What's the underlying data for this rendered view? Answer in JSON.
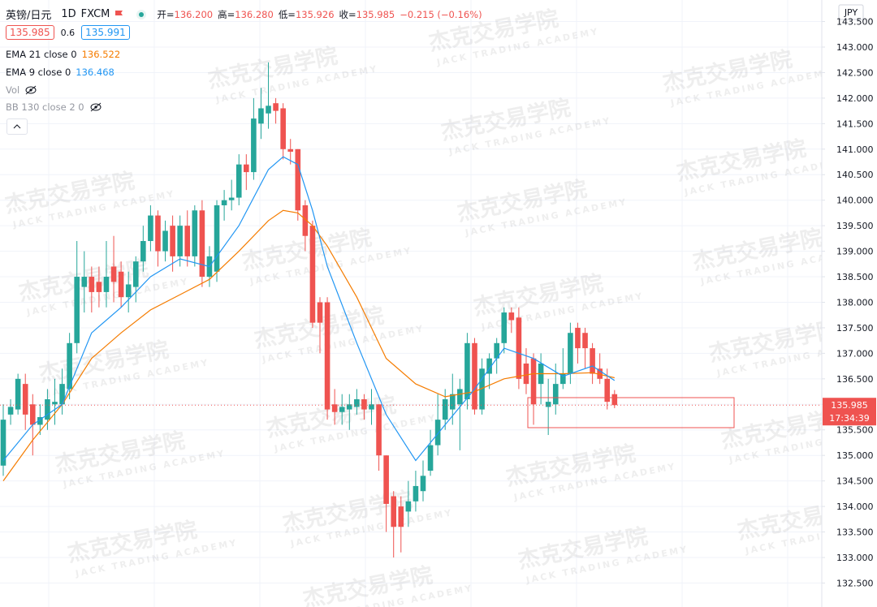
{
  "chart_data": {
    "type": "candlestick",
    "symbol": "英镑/日元",
    "interval": "1D",
    "source": "FXCM",
    "ohlc_legend": [
      {
        "label": "开=",
        "value": "136.200"
      },
      {
        "label": "高=",
        "value": "136.280"
      },
      {
        "label": "低=",
        "value": "135.926"
      },
      {
        "label": "收=",
        "value": "135.985"
      }
    ],
    "change": "−0.215 (−0.16%)",
    "sell": 135.985,
    "spread": 0.6,
    "buy": 135.991,
    "hidden_indicators": [
      "Vol",
      "BB 130 close 2 0"
    ],
    "currency": "JPY",
    "countdown": "17:34:39",
    "watermark": {
      "cn": "杰克交易学院",
      "en": "JACK TRADING ACADEMY"
    },
    "up_color": "#26a69a",
    "down_color": "#ef5350",
    "open": [
      134.8,
      135.8,
      135.9,
      136.4,
      136.0,
      135.6,
      135.7,
      136.0,
      136.0,
      136.3,
      137.2,
      138.3,
      138.5,
      138.4,
      138.2,
      138.7,
      138.6,
      138.1,
      138.3,
      138.8,
      139.2,
      139.7,
      139.0,
      139.5,
      138.9,
      139.5,
      138.9,
      139.8,
      138.5,
      138.6,
      139.9,
      140.0,
      140.05,
      140.7,
      140.55,
      141.5,
      141.7,
      141.9,
      141.8,
      141.0,
      141.0,
      139.9,
      139.5,
      138.0,
      138.0,
      136.0,
      135.85,
      135.9,
      135.95,
      136.1,
      135.9,
      136.0,
      135.0,
      134.2,
      134.0,
      133.9,
      134.1,
      134.3,
      134.7,
      135.2,
      135.7,
      135.9,
      136.0,
      136.1,
      137.2,
      135.9,
      136.6,
      136.9,
      137.2,
      137.8,
      137.7,
      136.8,
      136.9,
      136.4,
      135.95,
      136.0,
      136.4,
      136.6,
      137.5,
      137.4,
      137.1,
      136.7,
      136.5,
      136.2
    ],
    "high": [
      136.0,
      136.1,
      136.6,
      136.6,
      136.2,
      136.0,
      136.3,
      136.5,
      136.7,
      137.4,
      139.2,
      139.0,
      138.7,
      138.7,
      139.2,
      139.3,
      138.8,
      138.6,
      138.9,
      139.5,
      139.9,
      139.8,
      139.6,
      139.7,
      139.7,
      139.8,
      139.9,
      140.0,
      139.1,
      140.0,
      140.2,
      140.4,
      140.9,
      140.9,
      142.0,
      142.2,
      142.7,
      142.0,
      141.9,
      141.2,
      141.0,
      140.0,
      139.6,
      138.1,
      138.1,
      136.3,
      136.2,
      136.2,
      136.3,
      136.2,
      136.3,
      136.0,
      135.0,
      134.3,
      134.2,
      134.5,
      134.7,
      134.9,
      135.5,
      136.2,
      136.3,
      136.6,
      136.5,
      137.4,
      137.3,
      136.9,
      137.0,
      137.3,
      137.9,
      137.9,
      137.9,
      137.1,
      137.0,
      137.0,
      136.5,
      136.8,
      137.1,
      137.6,
      137.6,
      137.5,
      137.2,
      137.0,
      136.7,
      136.28
    ],
    "low": [
      134.6,
      135.6,
      135.8,
      135.5,
      135.0,
      135.4,
      135.5,
      135.6,
      135.8,
      136.1,
      137.0,
      137.8,
      137.8,
      137.9,
      137.9,
      138.0,
      137.9,
      137.8,
      138.0,
      138.6,
      139.0,
      138.7,
      138.8,
      138.6,
      138.7,
      138.7,
      138.7,
      138.3,
      138.3,
      138.4,
      139.6,
      139.8,
      139.9,
      140.2,
      140.4,
      141.2,
      141.4,
      141.5,
      140.8,
      140.7,
      139.6,
      139.0,
      137.5,
      137.0,
      135.7,
      135.6,
      135.6,
      135.5,
      135.8,
      135.7,
      135.6,
      134.7,
      133.5,
      133.0,
      133.1,
      133.6,
      133.9,
      134.1,
      134.6,
      135.0,
      135.5,
      135.6,
      135.1,
      135.9,
      135.8,
      135.8,
      136.3,
      136.6,
      137.0,
      137.4,
      136.3,
      136.2,
      135.6,
      136.0,
      135.4,
      135.8,
      136.3,
      136.4,
      136.8,
      136.7,
      136.4,
      136.4,
      135.9,
      135.926
    ],
    "close": [
      135.7,
      135.95,
      136.5,
      135.8,
      135.6,
      135.75,
      136.1,
      136.05,
      136.4,
      137.2,
      138.5,
      138.5,
      138.2,
      138.2,
      138.5,
      138.4,
      138.1,
      138.35,
      138.8,
      139.2,
      139.7,
      139.0,
      139.4,
      138.9,
      139.5,
      138.9,
      139.8,
      138.5,
      138.9,
      139.9,
      140.0,
      140.05,
      140.7,
      140.55,
      141.6,
      141.8,
      141.85,
      141.75,
      141.0,
      140.95,
      139.8,
      139.3,
      137.6,
      137.6,
      135.9,
      135.85,
      135.95,
      136.0,
      136.1,
      135.9,
      136.0,
      135.0,
      134.05,
      133.6,
      133.6,
      134.1,
      134.4,
      134.6,
      135.2,
      135.7,
      136.1,
      136.2,
      136.3,
      137.2,
      135.9,
      136.7,
      136.9,
      137.2,
      137.8,
      137.65,
      136.5,
      136.4,
      136.0,
      136.8,
      136.05,
      136.4,
      136.6,
      137.4,
      137.1,
      137.1,
      136.6,
      136.5,
      136.05,
      135.985
    ],
    "series": [
      {
        "name": "EMA 21 close 0",
        "color": "#f57c00",
        "last_value": 136.522,
        "x": [
          0,
          4,
          8,
          12,
          16,
          20,
          24,
          28,
          32,
          36,
          38,
          40,
          42,
          44,
          48,
          52,
          56,
          60,
          64,
          68,
          72,
          76,
          80,
          83
        ],
        "values": [
          134.5,
          135.3,
          136.0,
          136.9,
          137.4,
          137.85,
          138.15,
          138.45,
          139.0,
          139.6,
          139.8,
          139.75,
          139.5,
          139.1,
          138.1,
          136.9,
          136.4,
          136.15,
          136.25,
          136.5,
          136.6,
          136.6,
          136.62,
          136.522
        ]
      },
      {
        "name": "EMA 9 close 0",
        "color": "#2196f3",
        "last_value": 136.468,
        "x": [
          0,
          4,
          8,
          12,
          16,
          20,
          24,
          28,
          32,
          36,
          38,
          40,
          42,
          44,
          48,
          52,
          56,
          60,
          64,
          68,
          72,
          76,
          80,
          83
        ],
        "values": [
          134.9,
          135.6,
          136.0,
          137.4,
          137.9,
          138.5,
          138.85,
          138.7,
          139.5,
          140.6,
          140.85,
          140.7,
          139.8,
          138.7,
          137.2,
          135.8,
          134.9,
          135.6,
          136.3,
          137.1,
          136.9,
          136.55,
          136.75,
          136.468
        ]
      }
    ],
    "ylim": [
      132.03,
      143.922
    ],
    "yticks": [
      {
        "value": 132.5,
        "label": "132.500"
      },
      {
        "value": 133,
        "label": "133.000"
      },
      {
        "value": 133.5,
        "label": "133.500"
      },
      {
        "value": 134,
        "label": "134.000"
      },
      {
        "value": 134.5,
        "label": "134.500"
      },
      {
        "value": 135,
        "label": "135.000"
      },
      {
        "value": 135.5,
        "label": "135.500"
      },
      {
        "value": 136,
        "label": "136.000"
      },
      {
        "value": 136.5,
        "label": "136.500"
      },
      {
        "value": 137,
        "label": "137.000"
      },
      {
        "value": 137.5,
        "label": "137.500"
      },
      {
        "value": 138,
        "label": "138.000"
      },
      {
        "value": 138.5,
        "label": "138.500"
      },
      {
        "value": 139,
        "label": "139.000"
      },
      {
        "value": 139.5,
        "label": "139.500"
      },
      {
        "value": 140,
        "label": "140.000"
      },
      {
        "value": 140.5,
        "label": "140.500"
      },
      {
        "value": 141,
        "label": "141.000"
      },
      {
        "value": 141.5,
        "label": "141.500"
      },
      {
        "value": 142,
        "label": "142.000"
      },
      {
        "value": 142.5,
        "label": "142.500"
      },
      {
        "value": 143,
        "label": "143.000"
      },
      {
        "value": 143.5,
        "label": "143.500"
      }
    ],
    "grid": true
  }
}
